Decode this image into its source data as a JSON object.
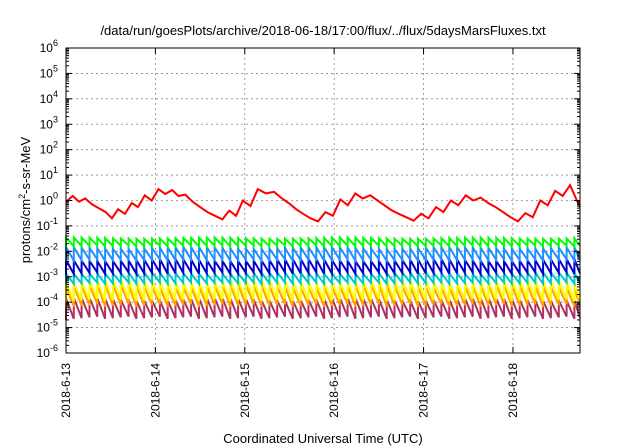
{
  "chart_data": {
    "type": "line",
    "title": "/data/run/goesPlots/archive/2018-06-18/17:00/flux/../flux/5daysMarsFluxes.txt",
    "xlabel": "Coordinated Universal Time (UTC)",
    "ylabel": "protons/cm²-s-sr-MeV",
    "ylabel_parts": {
      "pre": "protons/cm",
      "sup": "2",
      "post": "-s-sr-MeV"
    },
    "yscale": "log",
    "ylim": [
      1e-06,
      1000000.0
    ],
    "xlim": [
      "2018-06-13T00:00",
      "2018-06-18T18:00"
    ],
    "grid": true,
    "x_ticks": [
      "2018-6-13",
      "2018-6-14",
      "2018-6-15",
      "2018-6-16",
      "2018-6-17",
      "2018-6-18"
    ],
    "y_ticks": [
      {
        "base": "10",
        "exp": "-6"
      },
      {
        "base": "10",
        "exp": "-5"
      },
      {
        "base": "10",
        "exp": "-4"
      },
      {
        "base": "10",
        "exp": "-3"
      },
      {
        "base": "10",
        "exp": "-2"
      },
      {
        "base": "10",
        "exp": "-1"
      },
      {
        "base": "10",
        "exp": "0"
      },
      {
        "base": "10",
        "exp": "1"
      },
      {
        "base": "10",
        "exp": "2"
      },
      {
        "base": "10",
        "exp": "3"
      },
      {
        "base": "10",
        "exp": "4"
      },
      {
        "base": "10",
        "exp": "5"
      },
      {
        "base": "10",
        "exp": "6"
      }
    ],
    "series": [
      {
        "color": "#ff0000",
        "x": [
          "2018-06-13T00:00",
          "2018-06-13T01:50",
          "2018-06-13T03:30",
          "2018-06-13T05:10",
          "2018-06-13T07:00",
          "2018-06-13T08:50",
          "2018-06-13T10:40",
          "2018-06-13T12:20",
          "2018-06-13T14:00",
          "2018-06-13T15:50",
          "2018-06-13T17:40",
          "2018-06-13T19:20",
          "2018-06-13T21:10",
          "2018-06-13T23:00",
          "2018-06-14T00:50",
          "2018-06-14T02:40",
          "2018-06-14T04:30",
          "2018-06-14T06:10",
          "2018-06-14T08:00",
          "2018-06-14T10:00",
          "2018-06-14T12:00",
          "2018-06-14T14:00",
          "2018-06-14T16:00",
          "2018-06-14T18:00",
          "2018-06-14T19:50",
          "2018-06-14T21:40",
          "2018-06-14T23:30",
          "2018-06-15T01:30",
          "2018-06-15T03:30",
          "2018-06-15T05:40",
          "2018-06-15T07:50",
          "2018-06-15T10:00",
          "2018-06-15T12:00",
          "2018-06-15T13:50",
          "2018-06-15T15:40",
          "2018-06-15T17:40",
          "2018-06-15T19:40",
          "2018-06-15T21:40",
          "2018-06-15T23:40",
          "2018-06-16T01:40",
          "2018-06-16T03:40",
          "2018-06-16T05:40",
          "2018-06-16T07:40",
          "2018-06-16T09:40",
          "2018-06-16T11:40",
          "2018-06-16T13:30",
          "2018-06-16T15:20",
          "2018-06-16T17:20",
          "2018-06-16T19:20",
          "2018-06-16T21:20",
          "2018-06-16T23:20",
          "2018-06-17T01:20",
          "2018-06-17T03:20",
          "2018-06-17T05:20",
          "2018-06-17T07:20",
          "2018-06-17T09:20",
          "2018-06-17T11:20",
          "2018-06-17T13:20",
          "2018-06-17T15:20",
          "2018-06-17T17:20",
          "2018-06-17T19:20",
          "2018-06-17T21:20",
          "2018-06-17T23:20",
          "2018-06-18T01:20",
          "2018-06-18T03:20",
          "2018-06-18T05:20",
          "2018-06-18T07:20",
          "2018-06-18T09:20",
          "2018-06-18T11:20",
          "2018-06-18T13:20",
          "2018-06-18T15:20",
          "2018-06-18T17:10",
          "2018-06-18T18:00"
        ],
        "y": [
          0.9,
          1.5,
          0.9,
          1.2,
          0.7,
          0.5,
          0.35,
          0.2,
          0.45,
          0.3,
          0.8,
          0.55,
          1.6,
          1.0,
          2.8,
          1.8,
          2.6,
          1.5,
          1.7,
          0.9,
          0.55,
          0.35,
          0.25,
          0.18,
          0.4,
          0.25,
          1.0,
          0.6,
          2.8,
          1.9,
          2.2,
          1.2,
          0.75,
          0.45,
          0.3,
          0.2,
          0.15,
          0.35,
          0.25,
          1.1,
          0.65,
          1.9,
          1.2,
          1.6,
          1.0,
          0.65,
          0.42,
          0.3,
          0.22,
          0.16,
          0.3,
          0.2,
          0.55,
          0.35,
          1.0,
          0.65,
          1.6,
          1.0,
          1.3,
          0.8,
          0.55,
          0.35,
          0.22,
          0.15,
          0.32,
          0.22,
          1.0,
          0.65,
          2.4,
          1.5,
          4.0,
          1.0,
          0.55
        ]
      },
      {
        "color": "#00ff00",
        "ymin": 0.015,
        "ymax": 0.035
      },
      {
        "color": "#1e90ff",
        "ymin": 0.004,
        "ymax": 0.015
      },
      {
        "color": "#0000cd",
        "ymin": 0.0012,
        "ymax": 0.005
      },
      {
        "color": "#00c8c8",
        "ymin": 0.0005,
        "ymax": 0.0015
      },
      {
        "color": "#ffff00",
        "ymin": 0.0001,
        "ymax": 0.0008
      },
      {
        "color": "#ffa000",
        "ymin": 6e-05,
        "ymax": 0.0005
      },
      {
        "color": "#b03060",
        "ymin": 2e-05,
        "ymax": 0.00015
      }
    ]
  }
}
